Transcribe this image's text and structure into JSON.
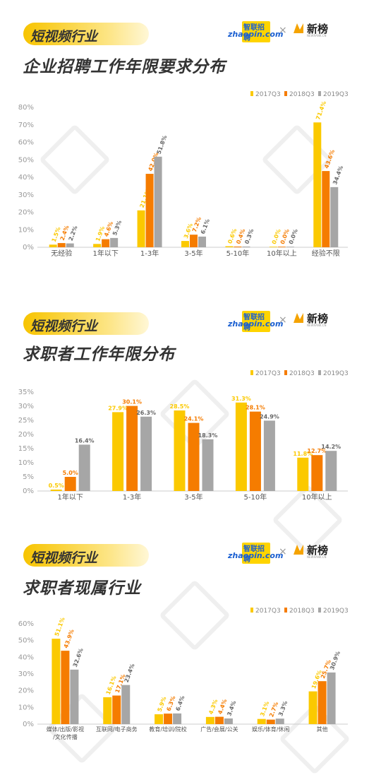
{
  "section_tag": "短视频行业",
  "brand": {
    "zhaopin_top": "智联招聘",
    "zhaopin_bottom": "zhaopin.com",
    "times": "×",
    "xinbang": "新榜",
    "xinbang_sub": "NEWRANK.CN"
  },
  "colors": {
    "s2017": "#fbc900",
    "s2018": "#f57c00",
    "s2019": "#a6a6a6"
  },
  "chart_data": [
    {
      "type": "bar",
      "title": "企业招聘工作年限要求分布",
      "categories": [
        "无经验",
        "1年以下",
        "1-3年",
        "3-5年",
        "5-10年",
        "10年以上",
        "经验不限"
      ],
      "series": [
        {
          "name": "2017Q3",
          "values": [
            1.5,
            1.9,
            21.1,
            3.6,
            0.6,
            0.0,
            71.4
          ],
          "labels": [
            "1.5%",
            "1.9%",
            "21.1%",
            "3.6%",
            "0.6%",
            "0.0%",
            "71.4%"
          ]
        },
        {
          "name": "2018Q3",
          "values": [
            2.4,
            4.6,
            42.0,
            7.2,
            0.4,
            0.0,
            43.6
          ],
          "labels": [
            "2.4%",
            "4.6%",
            "42.0%",
            "7.2%",
            "0.4%",
            "0.0%",
            "43.6%"
          ]
        },
        {
          "name": "2019Q3",
          "values": [
            2.2,
            5.3,
            51.8,
            6.1,
            0.3,
            0.0,
            34.4
          ],
          "labels": [
            "2.2%",
            "5.3%",
            "51.8%",
            "6.1%",
            "0.3%",
            "0.0%",
            "34.4%"
          ]
        }
      ],
      "ylim": [
        0,
        80
      ],
      "yticks": [
        "0%",
        "10%",
        "20%",
        "30%",
        "40%",
        "50%",
        "60%",
        "70%",
        "80%"
      ],
      "label_rotate": true,
      "grid": false,
      "legend": "top-right"
    },
    {
      "type": "bar",
      "title": "求职者工作年限分布",
      "categories": [
        "1年以下",
        "1-3年",
        "3-5年",
        "5-10年",
        "10年以上"
      ],
      "series": [
        {
          "name": "2017Q3",
          "values": [
            0.5,
            27.9,
            28.5,
            31.3,
            11.8
          ],
          "labels": [
            "0.5%",
            "27.9%",
            "28.5%",
            "31.3%",
            "11.8%"
          ]
        },
        {
          "name": "2018Q3",
          "values": [
            5.0,
            30.1,
            24.1,
            28.1,
            12.7
          ],
          "labels": [
            "5.0%",
            "30.1%",
            "24.1%",
            "28.1%",
            "12.7%"
          ]
        },
        {
          "name": "2019Q3",
          "values": [
            16.4,
            26.3,
            18.3,
            24.9,
            14.2
          ],
          "labels": [
            "16.4%",
            "26.3%",
            "18.3%",
            "24.9%",
            "14.2%"
          ]
        }
      ],
      "ylim": [
        0,
        35
      ],
      "yticks": [
        "0%",
        "5%",
        "10%",
        "15%",
        "20%",
        "25%",
        "30%",
        "35%"
      ],
      "label_rotate": false,
      "grid": false,
      "legend": "top-right"
    },
    {
      "type": "bar",
      "title": "求职者现属行业",
      "categories": [
        "媒体/出版/影视/文化传播",
        "互联网/电子商务",
        "教育/培训/院校",
        "广告/会展/公关",
        "娱乐/体育/休闲",
        "其他"
      ],
      "category_lines": [
        [
          "媒体/出版/影视",
          "/文化传播"
        ],
        [
          "互联网/电子商务"
        ],
        [
          "教育/培训/院校"
        ],
        [
          "广告/会展/公关"
        ],
        [
          "娱乐/体育/休闲"
        ],
        [
          "其他"
        ]
      ],
      "series": [
        {
          "name": "2017Q3",
          "values": [
            51.1,
            16.1,
            5.9,
            4.3,
            3.1,
            19.6
          ],
          "labels": [
            "51.1%",
            "16.1%",
            "5.9%",
            "4.3%",
            "3.1%",
            "19.6%"
          ]
        },
        {
          "name": "2018Q3",
          "values": [
            43.9,
            17.1,
            6.3,
            4.4,
            2.7,
            25.7
          ],
          "labels": [
            "43.9%",
            "17.1%",
            "6.3%",
            "4.4%",
            "2.7%",
            "25.7%"
          ]
        },
        {
          "name": "2019Q3",
          "values": [
            32.6,
            23.4,
            6.4,
            3.4,
            3.3,
            30.9
          ],
          "labels": [
            "32.6%",
            "23.4%",
            "6.4%",
            "3.4%",
            "3.3%",
            "30.9%"
          ]
        }
      ],
      "ylim": [
        0,
        60
      ],
      "yticks": [
        "0%",
        "10%",
        "20%",
        "30%",
        "40%",
        "50%",
        "60%"
      ],
      "label_rotate": true,
      "grid": false,
      "legend": "top-right"
    }
  ]
}
